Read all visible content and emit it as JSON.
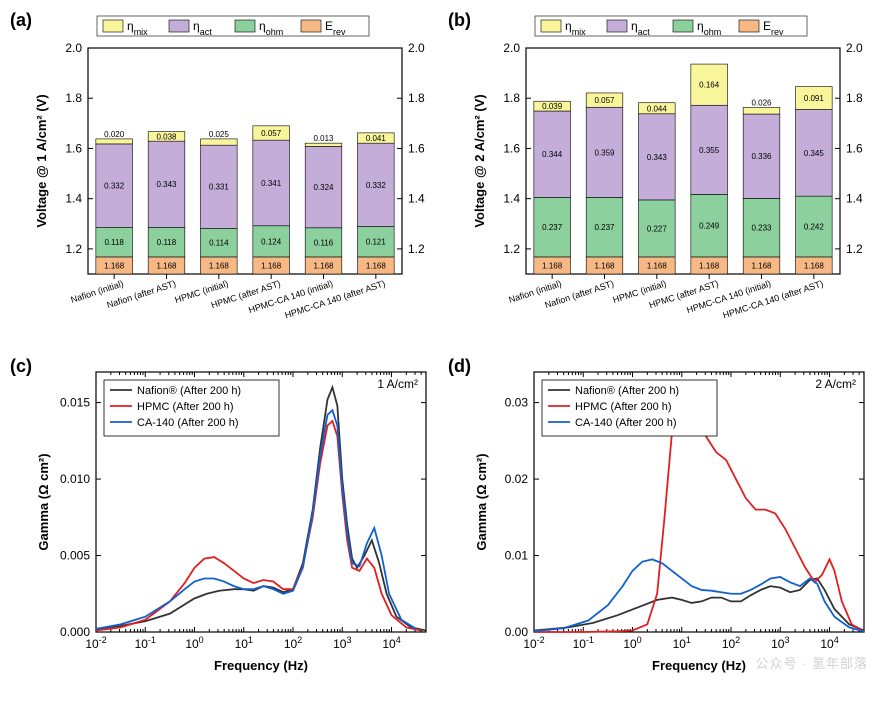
{
  "panels": {
    "a": {
      "label": "(a)"
    },
    "b": {
      "label": "(b)"
    },
    "c": {
      "label": "(c)"
    },
    "d": {
      "label": "(d)"
    }
  },
  "legend_bar": {
    "items": [
      {
        "key": "mix",
        "label": "η",
        "sub": "mix",
        "color": "#f9f59b"
      },
      {
        "key": "act",
        "label": "η",
        "sub": "act",
        "color": "#c4aed9"
      },
      {
        "key": "ohm",
        "label": "η",
        "sub": "ohm",
        "color": "#8bd09d"
      },
      {
        "key": "rev",
        "label": "E",
        "sub": "rev",
        "color": "#f6b884"
      }
    ],
    "fontsize": 12
  },
  "chart_a": {
    "type": "stacked-bar",
    "ylabel": "Voltage @ 1 A/cm² (V)",
    "ylim": [
      1.1,
      2.0
    ],
    "yticks": [
      1.2,
      1.4,
      1.6,
      1.8,
      2.0
    ],
    "rticks": [
      1.2,
      1.4,
      1.6,
      1.8,
      2.0
    ],
    "tick_fontsize": 12,
    "label_fontsize": 13,
    "xlabel_fontsize": 9,
    "value_fontsize": 8,
    "bar_width": 0.7,
    "categories": [
      "Nafion (initial)",
      "Nafion (after AST)",
      "HPMC (initial)",
      "HPMC (after AST)",
      "HPMC-CA 140 (initial)",
      "HPMC-CA 140 (after AST)"
    ],
    "segments": [
      "rev",
      "ohm",
      "act",
      "mix"
    ],
    "colors": {
      "rev": "#f6b884",
      "ohm": "#8bd09d",
      "act": "#c4aed9",
      "mix": "#f9f59b"
    },
    "data": [
      {
        "rev": 1.168,
        "ohm": 0.118,
        "act": 0.332,
        "mix": 0.02
      },
      {
        "rev": 1.168,
        "ohm": 0.118,
        "act": 0.343,
        "mix": 0.038
      },
      {
        "rev": 1.168,
        "ohm": 0.114,
        "act": 0.331,
        "mix": 0.025
      },
      {
        "rev": 1.168,
        "ohm": 0.124,
        "act": 0.341,
        "mix": 0.057
      },
      {
        "rev": 1.168,
        "ohm": 0.116,
        "act": 0.324,
        "mix": 0.013
      },
      {
        "rev": 1.168,
        "ohm": 0.121,
        "act": 0.332,
        "mix": 0.041
      }
    ],
    "border_color": "#000000",
    "background_color": "#ffffff"
  },
  "chart_b": {
    "type": "stacked-bar",
    "ylabel": "Voltage @ 2 A/cm² (V)",
    "ylim": [
      1.1,
      2.0
    ],
    "yticks": [
      1.2,
      1.4,
      1.6,
      1.8,
      2.0
    ],
    "rticks": [
      1.2,
      1.4,
      1.6,
      1.8,
      2.0
    ],
    "tick_fontsize": 12,
    "label_fontsize": 13,
    "xlabel_fontsize": 9,
    "value_fontsize": 8,
    "bar_width": 0.7,
    "categories": [
      "Nafion (initial)",
      "Nafion (after AST)",
      "HPMC (initial)",
      "HPMC (after AST)",
      "HPMC-CA 140 (initial)",
      "HPMC-CA 140 (after AST)"
    ],
    "segments": [
      "rev",
      "ohm",
      "act",
      "mix"
    ],
    "colors": {
      "rev": "#f6b884",
      "ohm": "#8bd09d",
      "act": "#c4aed9",
      "mix": "#f9f59b"
    },
    "data": [
      {
        "rev": 1.168,
        "ohm": 0.237,
        "act": 0.344,
        "mix": 0.039
      },
      {
        "rev": 1.168,
        "ohm": 0.237,
        "act": 0.359,
        "mix": 0.057
      },
      {
        "rev": 1.168,
        "ohm": 0.227,
        "act": 0.343,
        "mix": 0.044
      },
      {
        "rev": 1.168,
        "ohm": 0.249,
        "act": 0.355,
        "mix": 0.164
      },
      {
        "rev": 1.168,
        "ohm": 0.233,
        "act": 0.336,
        "mix": 0.026
      },
      {
        "rev": 1.168,
        "ohm": 0.242,
        "act": 0.345,
        "mix": 0.091
      }
    ],
    "border_color": "#000000",
    "background_color": "#ffffff"
  },
  "chart_c": {
    "type": "line",
    "condition_label": "1 A/cm²",
    "ylabel": "Gamma (Ω cm²)",
    "xlabel": "Frequency (Hz)",
    "xlim_log": [
      -2,
      4.7
    ],
    "ylim": [
      0,
      0.017
    ],
    "yticks": [
      0.0,
      0.005,
      0.01,
      0.015
    ],
    "xticks_log": [
      -2,
      -1,
      0,
      1,
      2,
      3,
      4
    ],
    "tick_fontsize": 12,
    "label_fontsize": 13,
    "line_width": 1.8,
    "legend_fontsize": 11,
    "border_color": "#000000",
    "series": [
      {
        "name": "Nafion® (After 200 h)",
        "color": "#333333",
        "points": [
          [
            -2,
            0.0002
          ],
          [
            -1.5,
            0.0004
          ],
          [
            -1,
            0.0007
          ],
          [
            -0.5,
            0.0012
          ],
          [
            0,
            0.0022
          ],
          [
            0.25,
            0.0025
          ],
          [
            0.5,
            0.0027
          ],
          [
            0.8,
            0.0028
          ],
          [
            1,
            0.0028
          ],
          [
            1.2,
            0.0027
          ],
          [
            1.4,
            0.003
          ],
          [
            1.6,
            0.0029
          ],
          [
            1.8,
            0.0026
          ],
          [
            2,
            0.0028
          ],
          [
            2.2,
            0.0045
          ],
          [
            2.4,
            0.008
          ],
          [
            2.55,
            0.012
          ],
          [
            2.7,
            0.0152
          ],
          [
            2.8,
            0.016
          ],
          [
            2.9,
            0.0148
          ],
          [
            3.0,
            0.01
          ],
          [
            3.1,
            0.007
          ],
          [
            3.2,
            0.0048
          ],
          [
            3.3,
            0.0042
          ],
          [
            3.45,
            0.005
          ],
          [
            3.6,
            0.006
          ],
          [
            3.75,
            0.0045
          ],
          [
            3.9,
            0.0025
          ],
          [
            4.1,
            0.001
          ],
          [
            4.4,
            0.0003
          ],
          [
            4.7,
            0.0001
          ]
        ]
      },
      {
        "name": "HPMC (After 200 h)",
        "color": "#e02020",
        "points": [
          [
            -2,
            0.0001
          ],
          [
            -1.5,
            0.0003
          ],
          [
            -1,
            0.0008
          ],
          [
            -0.5,
            0.002
          ],
          [
            -0.2,
            0.0032
          ],
          [
            0,
            0.0042
          ],
          [
            0.2,
            0.0048
          ],
          [
            0.4,
            0.0049
          ],
          [
            0.6,
            0.0045
          ],
          [
            0.8,
            0.004
          ],
          [
            1,
            0.0035
          ],
          [
            1.2,
            0.0032
          ],
          [
            1.4,
            0.0034
          ],
          [
            1.6,
            0.0033
          ],
          [
            1.8,
            0.0028
          ],
          [
            2,
            0.0028
          ],
          [
            2.2,
            0.0043
          ],
          [
            2.4,
            0.0075
          ],
          [
            2.55,
            0.011
          ],
          [
            2.7,
            0.0135
          ],
          [
            2.8,
            0.0138
          ],
          [
            2.9,
            0.0128
          ],
          [
            3.0,
            0.009
          ],
          [
            3.1,
            0.006
          ],
          [
            3.2,
            0.0042
          ],
          [
            3.35,
            0.004
          ],
          [
            3.5,
            0.0048
          ],
          [
            3.65,
            0.0042
          ],
          [
            3.8,
            0.0025
          ],
          [
            4.0,
            0.0011
          ],
          [
            4.3,
            0.0003
          ],
          [
            4.6,
            0.0001
          ]
        ]
      },
      {
        "name": "CA-140 (After 200 h)",
        "color": "#1060d0",
        "points": [
          [
            -2,
            0.0002
          ],
          [
            -1.5,
            0.0005
          ],
          [
            -1,
            0.001
          ],
          [
            -0.5,
            0.002
          ],
          [
            -0.2,
            0.0028
          ],
          [
            0,
            0.0033
          ],
          [
            0.2,
            0.0035
          ],
          [
            0.4,
            0.0035
          ],
          [
            0.6,
            0.0033
          ],
          [
            0.8,
            0.003
          ],
          [
            1,
            0.0028
          ],
          [
            1.2,
            0.0028
          ],
          [
            1.4,
            0.003
          ],
          [
            1.6,
            0.0028
          ],
          [
            1.8,
            0.0025
          ],
          [
            2,
            0.0027
          ],
          [
            2.2,
            0.0042
          ],
          [
            2.4,
            0.0078
          ],
          [
            2.55,
            0.0115
          ],
          [
            2.7,
            0.0142
          ],
          [
            2.8,
            0.0145
          ],
          [
            2.9,
            0.0135
          ],
          [
            3.0,
            0.0095
          ],
          [
            3.1,
            0.0065
          ],
          [
            3.2,
            0.0045
          ],
          [
            3.35,
            0.0043
          ],
          [
            3.5,
            0.0058
          ],
          [
            3.65,
            0.0068
          ],
          [
            3.8,
            0.005
          ],
          [
            3.95,
            0.0025
          ],
          [
            4.2,
            0.0008
          ],
          [
            4.5,
            0.0002
          ]
        ]
      }
    ]
  },
  "chart_d": {
    "type": "line",
    "condition_label": "2 A/cm²",
    "ylabel": "Gamma (Ω cm²)",
    "xlabel": "Frequency (Hz)",
    "xlim_log": [
      -2,
      4.7
    ],
    "ylim": [
      0,
      0.034
    ],
    "yticks": [
      0.0,
      0.01,
      0.02,
      0.03
    ],
    "xticks_log": [
      -2,
      -1,
      0,
      1,
      2,
      3,
      4
    ],
    "tick_fontsize": 12,
    "label_fontsize": 13,
    "line_width": 1.8,
    "legend_fontsize": 11,
    "border_color": "#000000",
    "series": [
      {
        "name": "Nafion® (After 200 h)",
        "color": "#333333",
        "points": [
          [
            -2,
            0.0002
          ],
          [
            -1.3,
            0.0006
          ],
          [
            -0.8,
            0.0012
          ],
          [
            -0.3,
            0.0022
          ],
          [
            0.1,
            0.0032
          ],
          [
            0.5,
            0.0042
          ],
          [
            0.8,
            0.0045
          ],
          [
            1.0,
            0.0042
          ],
          [
            1.2,
            0.0038
          ],
          [
            1.4,
            0.004
          ],
          [
            1.6,
            0.0045
          ],
          [
            1.8,
            0.0045
          ],
          [
            2.0,
            0.004
          ],
          [
            2.2,
            0.004
          ],
          [
            2.4,
            0.0048
          ],
          [
            2.6,
            0.0055
          ],
          [
            2.8,
            0.006
          ],
          [
            3.0,
            0.0058
          ],
          [
            3.2,
            0.0052
          ],
          [
            3.4,
            0.0055
          ],
          [
            3.6,
            0.0068
          ],
          [
            3.75,
            0.007
          ],
          [
            3.9,
            0.0055
          ],
          [
            4.1,
            0.003
          ],
          [
            4.4,
            0.001
          ],
          [
            4.7,
            0.0002
          ]
        ]
      },
      {
        "name": "HPMC (After 200 h)",
        "color": "#e02020",
        "points": [
          [
            -2,
            0.0
          ],
          [
            -1.0,
            0.0
          ],
          [
            -0.3,
            0.0001
          ],
          [
            0.0,
            0.0002
          ],
          [
            0.3,
            0.001
          ],
          [
            0.5,
            0.005
          ],
          [
            0.65,
            0.015
          ],
          [
            0.8,
            0.026
          ],
          [
            0.95,
            0.03
          ],
          [
            1.1,
            0.0305
          ],
          [
            1.3,
            0.028
          ],
          [
            1.5,
            0.0255
          ],
          [
            1.7,
            0.0235
          ],
          [
            1.9,
            0.0225
          ],
          [
            2.1,
            0.02
          ],
          [
            2.3,
            0.0175
          ],
          [
            2.5,
            0.016
          ],
          [
            2.7,
            0.016
          ],
          [
            2.9,
            0.0155
          ],
          [
            3.1,
            0.0135
          ],
          [
            3.3,
            0.011
          ],
          [
            3.5,
            0.0085
          ],
          [
            3.7,
            0.0065
          ],
          [
            3.85,
            0.0075
          ],
          [
            4.0,
            0.0095
          ],
          [
            4.1,
            0.008
          ],
          [
            4.25,
            0.004
          ],
          [
            4.45,
            0.001
          ],
          [
            4.7,
            0.0001
          ]
        ]
      },
      {
        "name": "CA-140 (After 200 h)",
        "color": "#1060d0",
        "points": [
          [
            -2,
            0.0001
          ],
          [
            -1.4,
            0.0005
          ],
          [
            -0.9,
            0.0015
          ],
          [
            -0.5,
            0.0035
          ],
          [
            -0.2,
            0.006
          ],
          [
            0.0,
            0.008
          ],
          [
            0.2,
            0.0092
          ],
          [
            0.4,
            0.0095
          ],
          [
            0.6,
            0.009
          ],
          [
            0.8,
            0.008
          ],
          [
            1.0,
            0.007
          ],
          [
            1.2,
            0.006
          ],
          [
            1.4,
            0.0055
          ],
          [
            1.6,
            0.0054
          ],
          [
            1.8,
            0.0052
          ],
          [
            2.0,
            0.005
          ],
          [
            2.2,
            0.005
          ],
          [
            2.4,
            0.0055
          ],
          [
            2.6,
            0.0062
          ],
          [
            2.8,
            0.007
          ],
          [
            3.0,
            0.0072
          ],
          [
            3.2,
            0.0065
          ],
          [
            3.4,
            0.006
          ],
          [
            3.6,
            0.007
          ],
          [
            3.75,
            0.0063
          ],
          [
            3.9,
            0.004
          ],
          [
            4.1,
            0.002
          ],
          [
            4.4,
            0.0006
          ],
          [
            4.7,
            0.0001
          ]
        ]
      }
    ]
  },
  "watermark": "公众号 · 氢年部落"
}
